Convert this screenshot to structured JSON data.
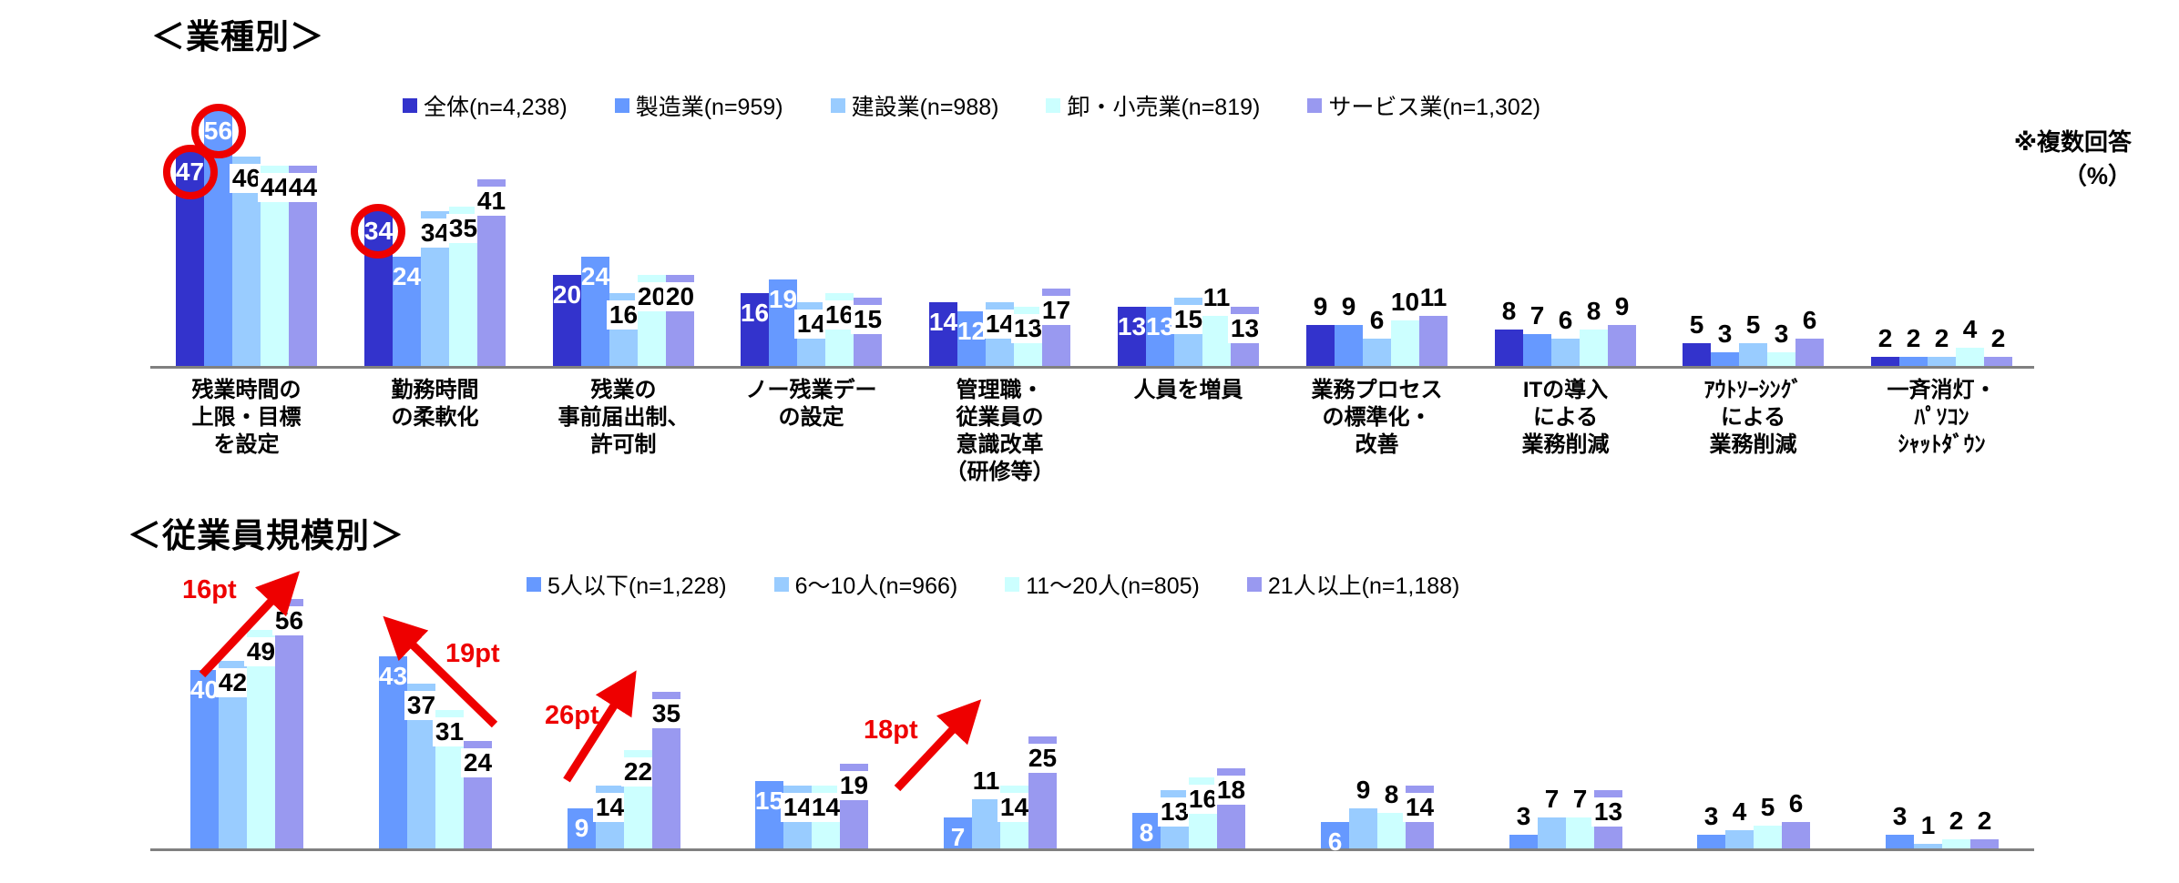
{
  "page": {
    "background": "#ffffff",
    "axis_color": "#808080",
    "annotation_color": "#ee0000"
  },
  "chart_data": [
    {
      "type": "bar",
      "title": "＜業種別＞",
      "note_line1": "※複数回答",
      "note_line2": "（%）",
      "unit": "%",
      "grid": false,
      "legend_position": "top",
      "ylim": [
        0,
        60
      ],
      "categories": [
        "残業時間の上限・目標を設定",
        "勤務時間の柔軟化",
        "残業の事前届出制、許可制",
        "ノー残業デーの設定",
        "管理職・従業員の意識改革（研修等）",
        "人員を増員",
        "業務プロセスの標準化・改善",
        "ITの導入による業務削減",
        "アウトソーシングによる業務削減",
        "一斉消灯・パソコンシャットダウン"
      ],
      "categories_lines": [
        [
          "残業時間の",
          "上限・目標",
          "を設定"
        ],
        [
          "勤務時間",
          "の柔軟化"
        ],
        [
          "残業の",
          "事前届出制、",
          "許可制"
        ],
        [
          "ノー残業デー",
          "の設定"
        ],
        [
          "管理職・",
          "従業員の",
          "意識改革",
          "（研修等）"
        ],
        [
          "人員を増員"
        ],
        [
          "業務プロセス",
          "の標準化・",
          "改善"
        ],
        [
          "ITの導入",
          "による",
          "業務削減"
        ],
        [
          "ｱｳﾄｿｰｼﾝｸﾞ",
          "による",
          "業務削減"
        ],
        [
          "一斉消灯・",
          "ﾊﾟｿｺﾝ",
          "ｼｬｯﾄﾀﾞｳﾝ"
        ]
      ],
      "series": [
        {
          "name": "全体(n=4,238)",
          "color": "#3333cc",
          "values": [
            47,
            34,
            20,
            16,
            14,
            13,
            9,
            8,
            5,
            2
          ]
        },
        {
          "name": "製造業(n=959)",
          "color": "#6699ff",
          "values": [
            56,
            24,
            24,
            19,
            12,
            13,
            9,
            7,
            3,
            2
          ]
        },
        {
          "name": "建設業(n=988)",
          "color": "#99ccff",
          "values": [
            46,
            34,
            16,
            14,
            14,
            15,
            6,
            6,
            5,
            2
          ]
        },
        {
          "name": "卸・小売業(n=819)",
          "color": "#ccffff",
          "values": [
            44,
            35,
            20,
            16,
            13,
            11,
            10,
            8,
            3,
            4
          ]
        },
        {
          "name": "サービス業(n=1,302)",
          "color": "#9999f0",
          "values": [
            44,
            41,
            20,
            15,
            17,
            13,
            11,
            9,
            6,
            2
          ]
        }
      ],
      "annotations": {
        "circles": [
          {
            "category_index": 0,
            "series_index": 0,
            "value": 47
          },
          {
            "category_index": 0,
            "series_index": 1,
            "value": 56
          },
          {
            "category_index": 1,
            "series_index": 0,
            "value": 34
          }
        ]
      }
    },
    {
      "type": "bar",
      "title": "＜従業員規模別＞",
      "unit": "%",
      "grid": false,
      "legend_position": "top",
      "ylim": [
        0,
        60
      ],
      "series": [
        {
          "name": "5人以下(n=1,228)",
          "color": "#6699ff",
          "values": [
            40,
            43,
            9,
            15,
            7,
            8,
            6,
            3,
            3,
            3
          ]
        },
        {
          "name": "6～10人(n=966)",
          "color": "#99ccff",
          "values": [
            42,
            37,
            14,
            14,
            11,
            13,
            9,
            7,
            4,
            1
          ]
        },
        {
          "name": "11～20人(n=805)",
          "color": "#ccffff",
          "values": [
            49,
            31,
            22,
            14,
            14,
            16,
            8,
            7,
            5,
            2
          ]
        },
        {
          "name": "21人以上(n=1,188)",
          "color": "#9999f0",
          "values": [
            56,
            24,
            35,
            19,
            25,
            18,
            14,
            13,
            6,
            2
          ]
        }
      ],
      "annotations": {
        "arrows": [
          {
            "label": "16pt",
            "category_index": 0,
            "direction": "up-right"
          },
          {
            "label": "19pt",
            "category_index": 1,
            "direction": "up-left"
          },
          {
            "label": "26pt",
            "category_index": 2,
            "direction": "up-right"
          },
          {
            "label": "18pt",
            "category_index": 4,
            "direction": "up-right"
          }
        ]
      }
    }
  ]
}
